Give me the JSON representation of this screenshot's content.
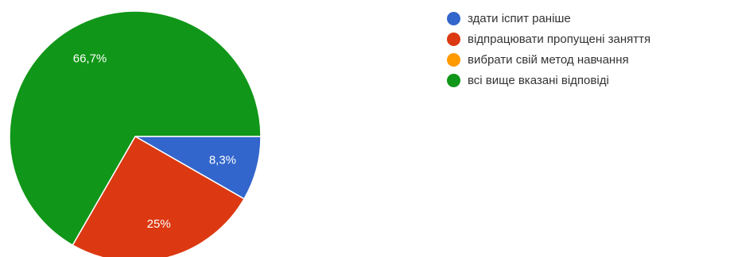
{
  "chart_data": {
    "type": "pie",
    "title": "",
    "start_angle_deg": 90,
    "direction": "clockwise",
    "legend_position": "right",
    "slices": [
      {
        "label": "здати іспит раніше",
        "value": 8.3,
        "display": "8,3%",
        "color": "#3366cc"
      },
      {
        "label": "відпрацювати пропущені заняття",
        "value": 25,
        "display": "25%",
        "color": "#dc3912"
      },
      {
        "label": "вибрати свій метод навчання",
        "value": 0,
        "display": "",
        "color": "#ff9900"
      },
      {
        "label": "всі вище вказані відповіді",
        "value": 66.7,
        "display": "66,7%",
        "color": "#109618"
      }
    ]
  }
}
